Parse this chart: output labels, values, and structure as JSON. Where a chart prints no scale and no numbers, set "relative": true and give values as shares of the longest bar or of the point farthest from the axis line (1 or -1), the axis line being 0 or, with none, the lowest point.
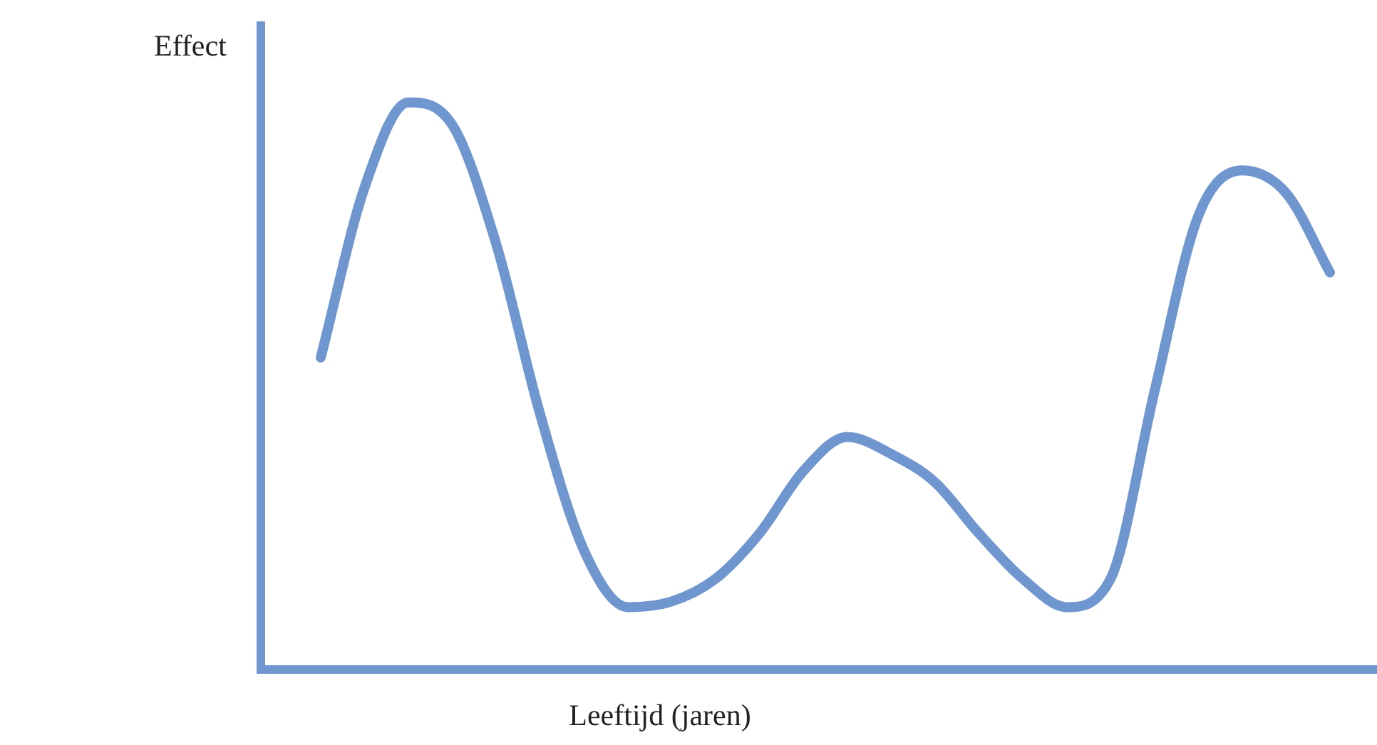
{
  "chart_data": {
    "type": "line",
    "relative": true,
    "ylabel": "Effect",
    "xlabel": "Leeftijd (jaren)",
    "categories": [
      null,
      null,
      null,
      null,
      null,
      null,
      null,
      null,
      null,
      null,
      null,
      null,
      null,
      null,
      null,
      null,
      null,
      null,
      null,
      null,
      null,
      null,
      null,
      null
    ],
    "series": [
      {
        "color": "#7096cf",
        "values": [
          0.55,
          0.85,
          1.0,
          0.96,
          0.75,
          0.45,
          0.21,
          0.11,
          0.12,
          0.16,
          0.24,
          0.35,
          0.41,
          0.38,
          0.33,
          0.24,
          0.16,
          0.11,
          0.16,
          0.49,
          0.8,
          0.88,
          0.84,
          0.7
        ]
      }
    ],
    "legend": false,
    "marker": "none",
    "line_style": "solid",
    "tick_labels": false
  }
}
